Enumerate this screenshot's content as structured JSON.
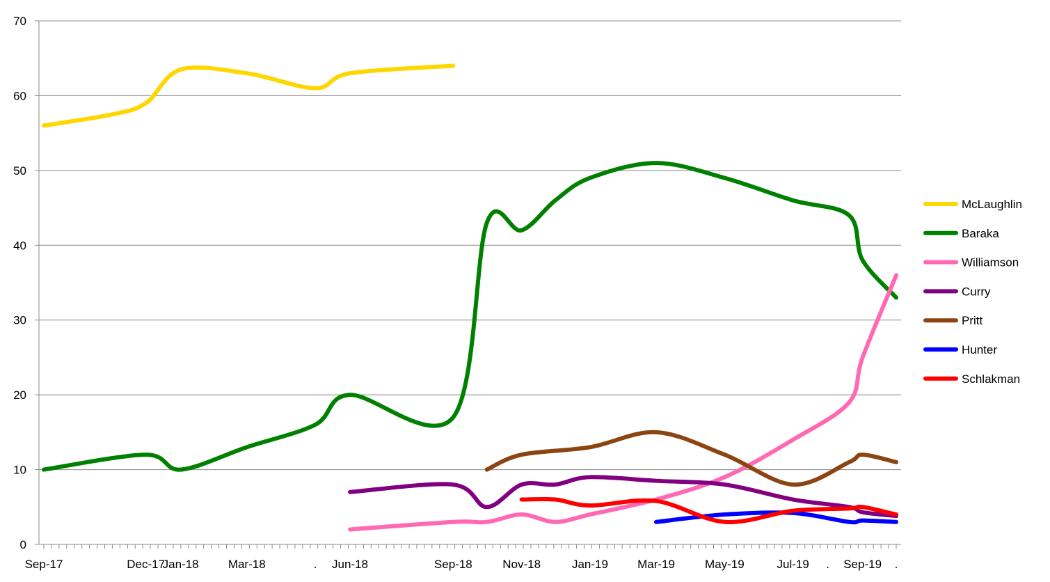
{
  "chart_data": {
    "type": "line",
    "title": "",
    "xlabel": "",
    "ylabel": "",
    "ylim": [
      0,
      70
    ],
    "y_ticks": [
      0,
      10,
      20,
      30,
      40,
      50,
      60,
      70
    ],
    "grid": "horizontal",
    "legend_position": "right",
    "x_range": [
      "2017-09",
      "2019-10"
    ],
    "x_tick_labels": [
      {
        "label": "Sep-17",
        "x": "2017-09"
      },
      {
        "label": "Dec-17",
        "x": "2017-12"
      },
      {
        "label": "Jan-18",
        "x": "2018-01"
      },
      {
        "label": "Mar-18",
        "x": "2018-03"
      },
      {
        "label": ".",
        "x": "2018-05"
      },
      {
        "label": "Jun-18",
        "x": "2018-06"
      },
      {
        "label": "Sep-18",
        "x": "2018-09"
      },
      {
        "label": "Nov-18",
        "x": "2018-11"
      },
      {
        "label": "Jan-19",
        "x": "2019-01"
      },
      {
        "label": "Mar-19",
        "x": "2019-03"
      },
      {
        "label": "May-19",
        "x": "2019-05"
      },
      {
        "label": "Jul-19",
        "x": "2019-07"
      },
      {
        "label": ".",
        "x": "2019-08"
      },
      {
        "label": ".",
        "x": "2019-08-20"
      },
      {
        "label": "Sep-19",
        "x": "2019-09"
      },
      {
        "label": ".",
        "x": "2019-10"
      }
    ],
    "series": [
      {
        "name": "McLaughlin",
        "color": "#FFD700",
        "points": [
          [
            "2017-09",
            56
          ],
          [
            "2017-11",
            57.5
          ],
          [
            "2017-12",
            59
          ],
          [
            "2018-01",
            63.5
          ],
          [
            "2018-03",
            63
          ],
          [
            "2018-05",
            61
          ],
          [
            "2018-06",
            63
          ],
          [
            "2018-09",
            64
          ]
        ]
      },
      {
        "name": "Baraka",
        "color": "#008000",
        "points": [
          [
            "2017-09",
            10
          ],
          [
            "2017-12",
            12
          ],
          [
            "2018-01",
            10
          ],
          [
            "2018-03",
            13
          ],
          [
            "2018-05",
            16
          ],
          [
            "2018-06",
            20
          ],
          [
            "2018-09",
            17
          ],
          [
            "2018-10",
            43
          ],
          [
            "2018-11",
            42
          ],
          [
            "2018-12",
            46
          ],
          [
            "2019-01",
            49
          ],
          [
            "2019-03",
            51
          ],
          [
            "2019-05",
            49
          ],
          [
            "2019-07",
            46
          ],
          [
            "2019-08-20",
            44
          ],
          [
            "2019-09",
            38
          ],
          [
            "2019-10",
            33
          ]
        ]
      },
      {
        "name": "Williamson",
        "color": "#FF69B4",
        "points": [
          [
            "2018-06",
            2
          ],
          [
            "2018-09",
            3
          ],
          [
            "2018-10",
            3
          ],
          [
            "2018-11",
            4
          ],
          [
            "2018-12",
            3
          ],
          [
            "2019-01",
            4
          ],
          [
            "2019-03",
            6
          ],
          [
            "2019-05",
            9
          ],
          [
            "2019-07",
            14
          ],
          [
            "2019-08-20",
            19
          ],
          [
            "2019-09",
            25
          ],
          [
            "2019-10",
            36
          ]
        ]
      },
      {
        "name": "Curry",
        "color": "#800080",
        "points": [
          [
            "2018-06",
            7
          ],
          [
            "2018-09",
            8
          ],
          [
            "2018-10",
            5
          ],
          [
            "2018-11",
            8
          ],
          [
            "2018-12",
            8
          ],
          [
            "2019-01",
            9
          ],
          [
            "2019-03",
            8.5
          ],
          [
            "2019-05",
            8
          ],
          [
            "2019-07",
            6
          ],
          [
            "2019-08-20",
            5
          ],
          [
            "2019-09",
            4.3
          ],
          [
            "2019-10",
            3.8
          ]
        ]
      },
      {
        "name": "Pritt",
        "color": "#8B4513",
        "points": [
          [
            "2018-10",
            10
          ],
          [
            "2018-11",
            12
          ],
          [
            "2019-01",
            13
          ],
          [
            "2019-03",
            15
          ],
          [
            "2019-05",
            12
          ],
          [
            "2019-07",
            8
          ],
          [
            "2019-08-20",
            11
          ],
          [
            "2019-09",
            12
          ],
          [
            "2019-10",
            11
          ]
        ]
      },
      {
        "name": "Hunter",
        "color": "#0000FF",
        "points": [
          [
            "2019-03",
            3
          ],
          [
            "2019-05",
            4
          ],
          [
            "2019-07",
            4.2
          ],
          [
            "2019-08-20",
            3
          ],
          [
            "2019-09",
            3.2
          ],
          [
            "2019-10",
            3
          ]
        ]
      },
      {
        "name": "Schlakman",
        "color": "#FF0000",
        "points": [
          [
            "2018-11",
            6
          ],
          [
            "2018-12",
            6
          ],
          [
            "2019-01",
            5.2
          ],
          [
            "2019-03",
            5.8
          ],
          [
            "2019-05",
            3
          ],
          [
            "2019-07",
            4.5
          ],
          [
            "2019-08-20",
            4.8
          ],
          [
            "2019-09",
            5
          ],
          [
            "2019-10",
            4
          ]
        ]
      }
    ]
  }
}
